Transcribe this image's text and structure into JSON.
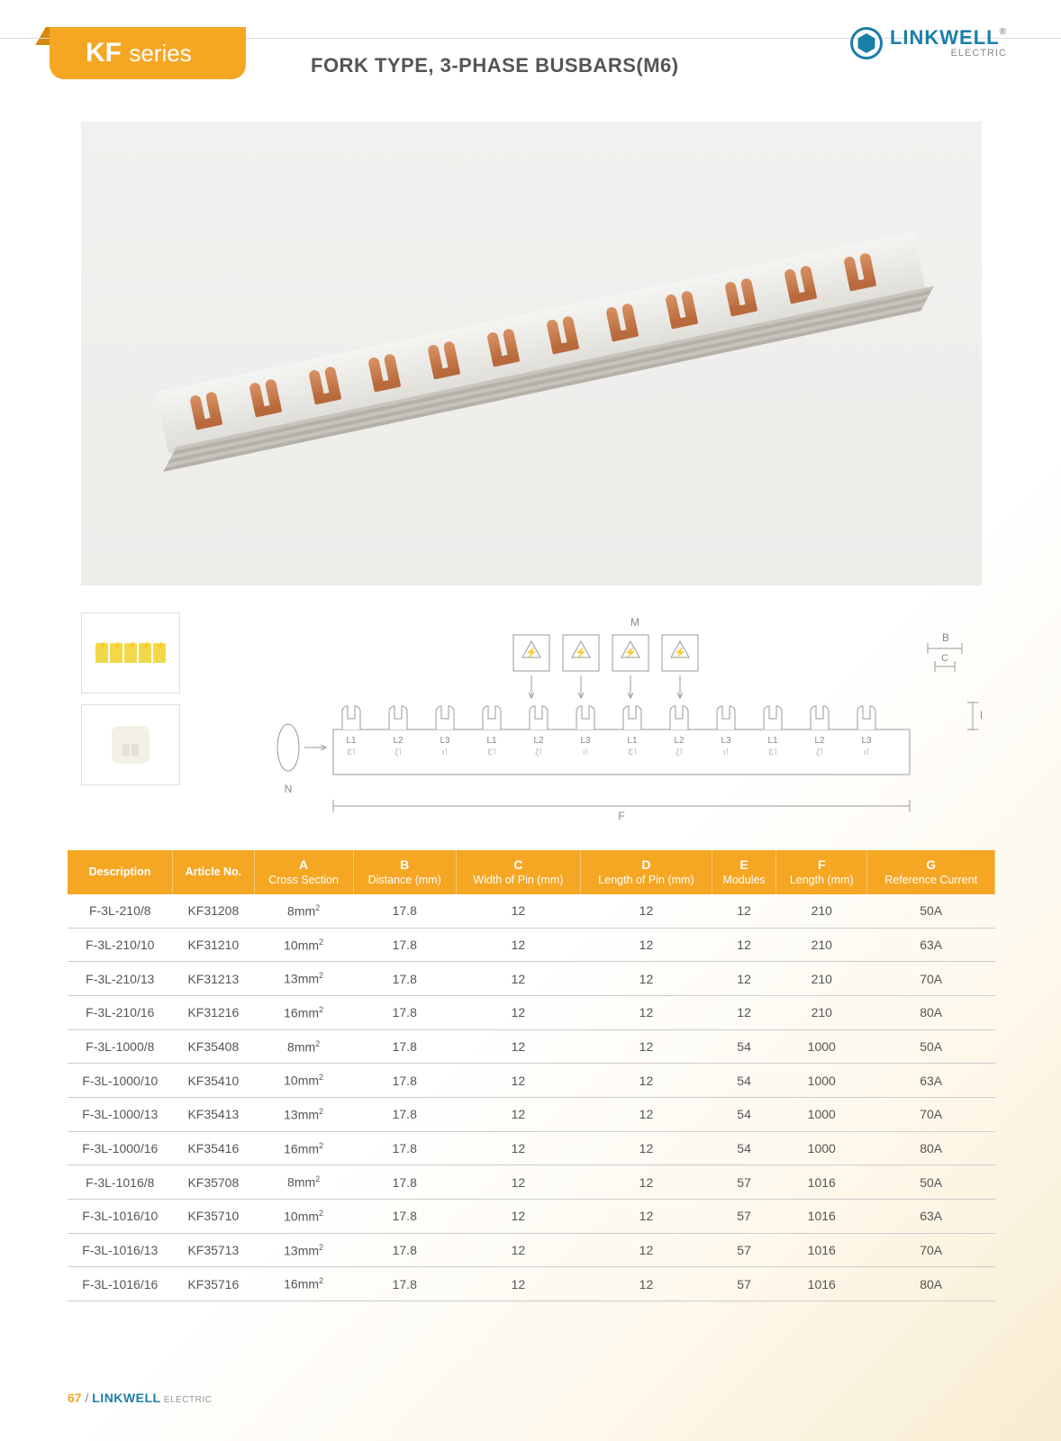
{
  "brand": {
    "name": "LINKWELL",
    "sub": "ELECTRIC",
    "color": "#1a7fa8"
  },
  "series": {
    "prefix": "KF",
    "word": "series"
  },
  "subtitle": "FORK TYPE, 3-PHASE BUSBARS(M6)",
  "diagram": {
    "label_M": "M",
    "label_N": "N",
    "label_F": "F",
    "label_B": "B",
    "label_C": "C",
    "label_D": "D",
    "phase_top": [
      "L1",
      "L2",
      "L3",
      "L1",
      "L2",
      "L3",
      "L1",
      "L2",
      "L3",
      "L1",
      "L2",
      "L3"
    ],
    "phase_bot": [
      "Ɛ˥",
      "ζ˥",
      "ι˥",
      "Ɛ˥",
      "ζ˥",
      "ι˥",
      "Ɛ˥",
      "ζ˥",
      "ι˥",
      "Ɛ˥",
      "ζ˥",
      "ι˥"
    ]
  },
  "table": {
    "columns": [
      {
        "letter": "",
        "label": "Description"
      },
      {
        "letter": "",
        "label": "Article No."
      },
      {
        "letter": "A",
        "label": "Cross Section"
      },
      {
        "letter": "B",
        "label": "Distance (mm)"
      },
      {
        "letter": "C",
        "label": "Width of Pin (mm)"
      },
      {
        "letter": "D",
        "label": "Length of Pin (mm)"
      },
      {
        "letter": "E",
        "label": "Modules"
      },
      {
        "letter": "F",
        "label": "Length (mm)"
      },
      {
        "letter": "G",
        "label": "Reference Current"
      }
    ],
    "rows": [
      [
        "F-3L-210/8",
        "KF31208",
        "8mm²",
        "17.8",
        "12",
        "12",
        "12",
        "210",
        "50A"
      ],
      [
        "F-3L-210/10",
        "KF31210",
        "10mm²",
        "17.8",
        "12",
        "12",
        "12",
        "210",
        "63A"
      ],
      [
        "F-3L-210/13",
        "KF31213",
        "13mm²",
        "17.8",
        "12",
        "12",
        "12",
        "210",
        "70A"
      ],
      [
        "F-3L-210/16",
        "KF31216",
        "16mm²",
        "17.8",
        "12",
        "12",
        "12",
        "210",
        "80A"
      ],
      [
        "F-3L-1000/8",
        "KF35408",
        "8mm²",
        "17.8",
        "12",
        "12",
        "54",
        "1000",
        "50A"
      ],
      [
        "F-3L-1000/10",
        "KF35410",
        "10mm²",
        "17.8",
        "12",
        "12",
        "54",
        "1000",
        "63A"
      ],
      [
        "F-3L-1000/13",
        "KF35413",
        "13mm²",
        "17.8",
        "12",
        "12",
        "54",
        "1000",
        "70A"
      ],
      [
        "F-3L-1000/16",
        "KF35416",
        "16mm²",
        "17.8",
        "12",
        "12",
        "54",
        "1000",
        "80A"
      ],
      [
        "F-3L-1016/8",
        "KF35708",
        "8mm²",
        "17.8",
        "12",
        "12",
        "57",
        "1016",
        "50A"
      ],
      [
        "F-3L-1016/10",
        "KF35710",
        "10mm²",
        "17.8",
        "12",
        "12",
        "57",
        "1016",
        "63A"
      ],
      [
        "F-3L-1016/13",
        "KF35713",
        "13mm²",
        "17.8",
        "12",
        "12",
        "57",
        "1016",
        "70A"
      ],
      [
        "F-3L-1016/16",
        "KF35716",
        "16mm²",
        "17.8",
        "12",
        "12",
        "57",
        "1016",
        "80A"
      ]
    ]
  },
  "footer": {
    "page": "67",
    "sep": " / ",
    "brand": "LINKWELL",
    "sub": "ELECTRIC"
  },
  "colors": {
    "accent": "#f5a623",
    "rule": "#cccccc",
    "text": "#555555"
  }
}
